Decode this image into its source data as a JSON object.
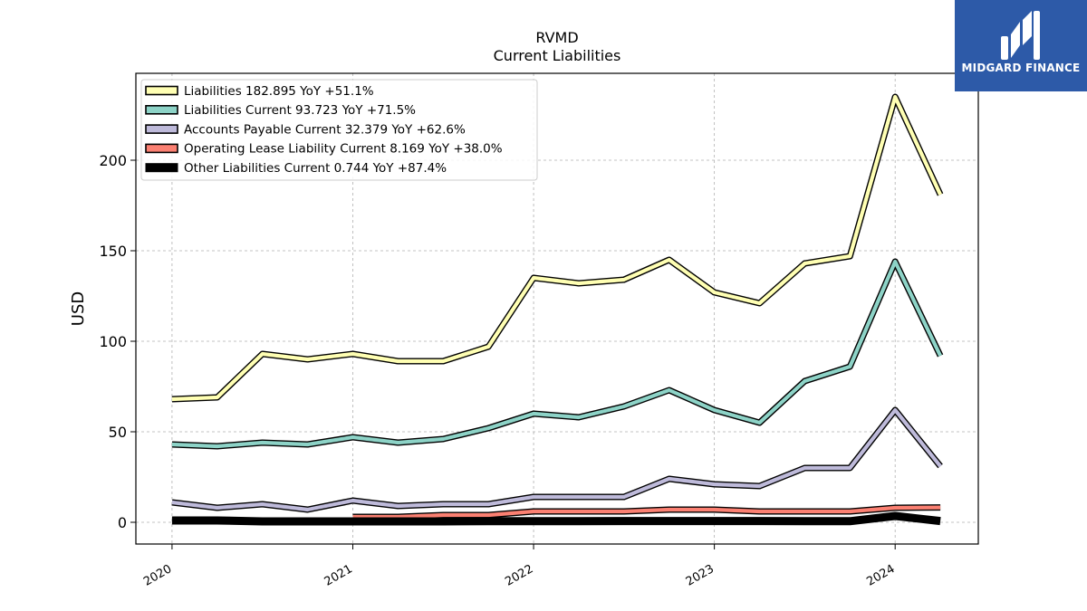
{
  "brand": {
    "name": "MIDGARD FINANCE",
    "logo_icon": "midgard-logo-icon",
    "background": "#2d5aa8"
  },
  "chart_data": {
    "type": "line",
    "title": "RVMD",
    "subtitle": "Current  Liabilities",
    "xlabel": "",
    "ylabel": "USD",
    "grid": true,
    "legend_position": "top-left",
    "xlim": [
      2019.8,
      2024.46
    ],
    "ylim": [
      -12,
      248
    ],
    "x_ticks": [
      2020,
      2021,
      2022,
      2023,
      2024
    ],
    "x_tick_labels": [
      "2020",
      "2021",
      "2022",
      "2023",
      "2024"
    ],
    "y_ticks": [
      0,
      50,
      100,
      150,
      200
    ],
    "y_tick_labels": [
      "0",
      "50",
      "100",
      "150",
      "200"
    ],
    "series": [
      {
        "name": "Liabilities",
        "legend_label": "Liabilities  182.895 YoY +51.1%",
        "color": "#ffffb3",
        "x": [
          2020.0,
          2020.25,
          2020.5,
          2020.75,
          2021.0,
          2021.25,
          2021.5,
          2021.75,
          2022.0,
          2022.25,
          2022.5,
          2022.75,
          2023.0,
          2023.25,
          2023.5,
          2023.75,
          2024.0,
          2024.25
        ],
        "values": [
          68,
          69,
          93,
          90,
          93,
          89,
          89,
          97,
          135,
          132,
          134,
          145,
          127,
          121,
          143,
          147,
          235,
          181
        ]
      },
      {
        "name": "Liabilities Current",
        "legend_label": "Liabilities Current  93.723 YoY +71.5%",
        "color": "#8dd3c7",
        "x": [
          2020.0,
          2020.25,
          2020.5,
          2020.75,
          2021.0,
          2021.25,
          2021.5,
          2021.75,
          2022.0,
          2022.25,
          2022.5,
          2022.75,
          2023.0,
          2023.25,
          2023.5,
          2023.75,
          2024.0,
          2024.25
        ],
        "values": [
          43,
          42,
          44,
          43,
          47,
          44,
          46,
          52,
          60,
          58,
          64,
          73,
          62,
          55,
          78,
          86,
          144,
          92
        ]
      },
      {
        "name": "Accounts Payable Current",
        "legend_label": "Accounts Payable Current  32.379 YoY +62.6%",
        "color": "#bebada",
        "x": [
          2020.0,
          2020.25,
          2020.5,
          2020.75,
          2021.0,
          2021.25,
          2021.5,
          2021.75,
          2022.0,
          2022.25,
          2022.5,
          2022.75,
          2023.0,
          2023.25,
          2023.5,
          2023.75,
          2024.0,
          2024.25
        ],
        "values": [
          11,
          8,
          10,
          7,
          12,
          9,
          10,
          10,
          14,
          14,
          14,
          24,
          21,
          20,
          30,
          30,
          62,
          31
        ]
      },
      {
        "name": "Operating Lease Liability Current",
        "legend_label": "Operating Lease Liability Current  8.169 YoY +38.0%",
        "color": "#fb8072",
        "x": [
          2021.0,
          2021.25,
          2021.5,
          2021.75,
          2022.0,
          2022.25,
          2022.5,
          2022.75,
          2023.0,
          2023.25,
          2023.5,
          2023.75,
          2024.0,
          2024.25
        ],
        "values": [
          3,
          3,
          4,
          4,
          6,
          6,
          6,
          7,
          7,
          6,
          6,
          6,
          8,
          8.2
        ]
      },
      {
        "name": "Other Liabilities Current",
        "legend_label": "Other Liabilities Current  0.744 YoY +87.4%",
        "color": "#000000",
        "x": [
          2020.0,
          2020.25,
          2020.5,
          2020.75,
          2021.0,
          2021.25,
          2021.5,
          2021.75,
          2022.0,
          2022.25,
          2022.5,
          2022.75,
          2023.0,
          2023.25,
          2023.5,
          2023.75,
          2024.0,
          2024.25
        ],
        "values": [
          1,
          1,
          0.5,
          0.5,
          0.5,
          0.5,
          0.5,
          0.6,
          0.6,
          0.6,
          0.7,
          0.7,
          0.7,
          0.7,
          0.6,
          0.6,
          3.5,
          0.7
        ]
      }
    ]
  }
}
